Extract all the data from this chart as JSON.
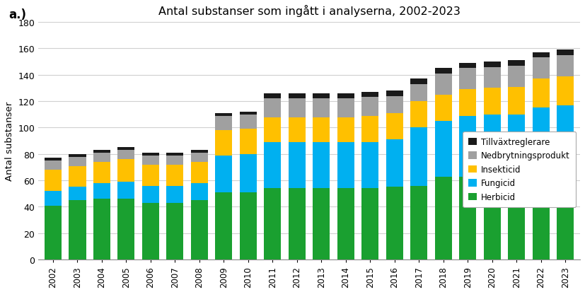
{
  "title": "Antal substanser som ingått i analyserna, 2002-2023",
  "subtitle_label": "a.)",
  "ylabel": "Antal substanser",
  "years": [
    2002,
    2003,
    2004,
    2005,
    2006,
    2007,
    2008,
    2009,
    2010,
    2011,
    2012,
    2013,
    2014,
    2015,
    2016,
    2017,
    2018,
    2019,
    2020,
    2021,
    2022,
    2023
  ],
  "herbicid": [
    41,
    45,
    46,
    46,
    43,
    43,
    45,
    51,
    51,
    54,
    54,
    54,
    54,
    54,
    55,
    56,
    63,
    63,
    63,
    63,
    63,
    66
  ],
  "fungicid": [
    11,
    10,
    12,
    13,
    13,
    13,
    13,
    28,
    29,
    35,
    35,
    35,
    35,
    35,
    36,
    44,
    42,
    46,
    47,
    47,
    52,
    51
  ],
  "insekticid": [
    16,
    16,
    16,
    17,
    16,
    16,
    16,
    19,
    19,
    19,
    19,
    19,
    19,
    20,
    20,
    20,
    20,
    20,
    20,
    21,
    22,
    22
  ],
  "nedbrytning": [
    7,
    7,
    7,
    7,
    7,
    7,
    7,
    11,
    11,
    14,
    14,
    14,
    14,
    14,
    13,
    13,
    16,
    16,
    16,
    16,
    16,
    16
  ],
  "tillvaxtregl": [
    2,
    2,
    2,
    2,
    2,
    2,
    2,
    2,
    2,
    4,
    4,
    4,
    4,
    4,
    4,
    4,
    4,
    4,
    4,
    4,
    4,
    4
  ],
  "colors": {
    "herbicid": "#1aA030",
    "fungicid": "#00B0F0",
    "insekticid": "#FFC000",
    "nedbrytning": "#A0A0A0",
    "tillvaxtregl": "#1a1a1a"
  },
  "ylim": [
    0,
    180
  ],
  "yticks": [
    0,
    20,
    40,
    60,
    80,
    100,
    120,
    140,
    160,
    180
  ],
  "background_color": "#ffffff",
  "grid_color": "#d0d0d0",
  "bar_width": 0.7
}
